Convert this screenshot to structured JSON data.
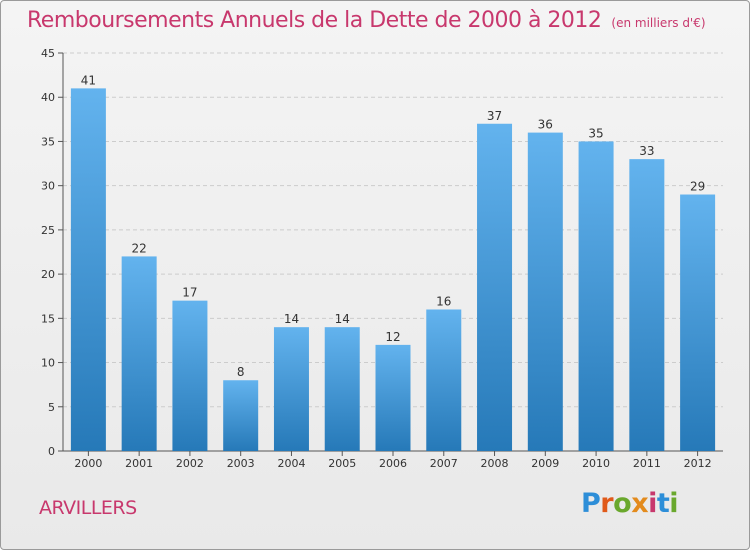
{
  "title": "Remboursements Annuels de la Dette de 2000 à 2012",
  "subtitle": "(en milliers d'€)",
  "commune": "ARVILLERS",
  "logo": {
    "text": "Proxiti",
    "letter_colors": [
      "#2d8ed8",
      "#e05a1a",
      "#6aa82d",
      "#e38b1d",
      "#c8386d",
      "#2d8ed8",
      "#6aa82d"
    ]
  },
  "colors": {
    "bar_top": "#63b3ee",
    "bar_bottom": "#2679b8",
    "title": "#c8386d",
    "grid": "#cccccc"
  },
  "chart_data": {
    "type": "bar",
    "title": "Remboursements Annuels de la Dette de 2000 à 2012",
    "subtitle": "(en milliers d'€)",
    "xlabel": "",
    "ylabel": "",
    "categories": [
      "2000",
      "2001",
      "2002",
      "2003",
      "2004",
      "2005",
      "2006",
      "2007",
      "2008",
      "2009",
      "2010",
      "2011",
      "2012"
    ],
    "values": [
      41,
      22,
      17,
      8,
      14,
      14,
      12,
      16,
      37,
      36,
      35,
      33,
      29
    ],
    "ylim": [
      0,
      45
    ],
    "yticks": [
      0,
      5,
      10,
      15,
      20,
      25,
      30,
      35,
      40,
      45
    ],
    "grid": true
  }
}
